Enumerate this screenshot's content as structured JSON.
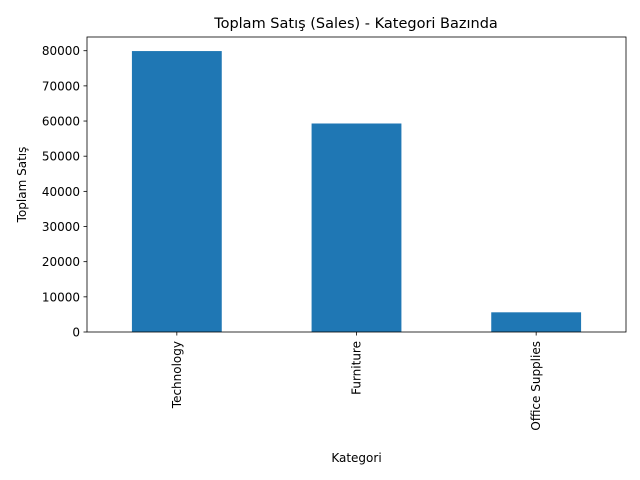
{
  "chart_data": {
    "type": "bar",
    "title": "Toplam Satış (Sales) - Kategori Bazında",
    "xlabel": "Kategori",
    "ylabel": "Toplam Satış",
    "categories": [
      "Technology",
      "Furniture",
      "Office Supplies"
    ],
    "values": [
      79900,
      59300,
      5600
    ],
    "ylim": [
      0,
      83900
    ],
    "yticks": [
      0,
      10000,
      20000,
      30000,
      40000,
      50000,
      60000,
      70000,
      80000
    ],
    "ytick_labels": [
      "0",
      "10000",
      "20000",
      "30000",
      "40000",
      "50000",
      "60000",
      "70000",
      "80000"
    ],
    "bar_color": "#1f77b4",
    "grid": false,
    "legend": "none"
  }
}
